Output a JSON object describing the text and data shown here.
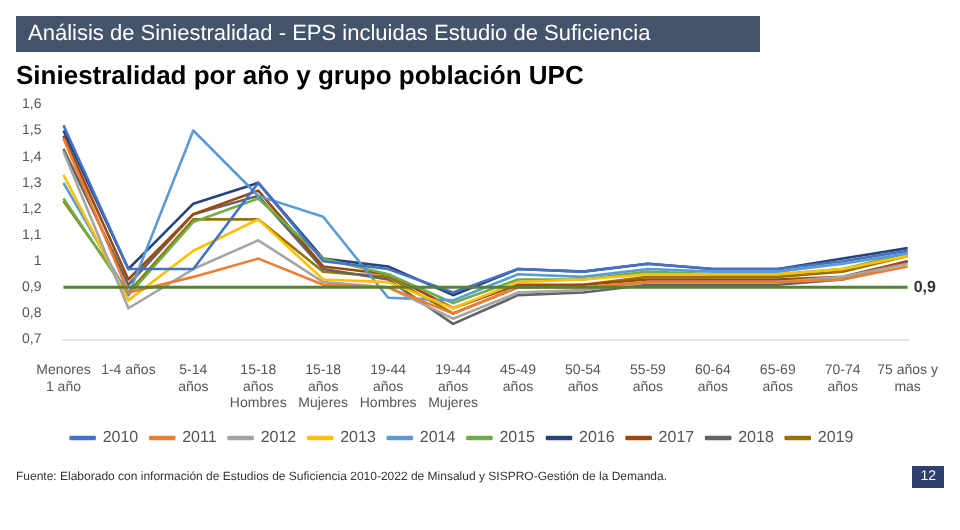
{
  "chart_data": {
    "type": "line",
    "title": "Análisis de Siniestralidad - EPS incluidas Estudio de Suficiencia",
    "subtitle": "Siniestralidad por año y grupo población UPC",
    "categories": [
      "Menores\n1 año",
      "1-4 años",
      "5-14\naños",
      "15-18\naños\nHombres",
      "15-18\naños\nMujeres",
      "19-44\naños\nHombres",
      "19-44\naños\nMujeres",
      "45-49\naños",
      "50-54\naños",
      "55-59\naños",
      "60-64\naños",
      "65-69\naños",
      "70-74\naños",
      "75 años y\nmas"
    ],
    "series": [
      {
        "name": "2010",
        "color": "#4472c4",
        "values": [
          1.52,
          0.97,
          0.97,
          1.3,
          1.0,
          0.97,
          0.88,
          0.97,
          0.96,
          0.99,
          0.97,
          0.97,
          1.0,
          1.04
        ]
      },
      {
        "name": "2011",
        "color": "#ed7d31",
        "values": [
          1.47,
          0.88,
          0.94,
          1.01,
          0.91,
          0.9,
          0.8,
          0.9,
          0.9,
          0.92,
          0.92,
          0.92,
          0.93,
          0.98
        ]
      },
      {
        "name": "2012",
        "color": "#a5a5a5",
        "values": [
          1.42,
          0.82,
          0.97,
          1.08,
          0.92,
          0.9,
          0.78,
          0.88,
          0.89,
          0.92,
          null,
          0.92,
          0.94,
          0.99
        ]
      },
      {
        "name": "2013",
        "color": "#ffc000",
        "values": [
          1.33,
          0.85,
          1.04,
          1.16,
          0.93,
          0.92,
          0.82,
          0.92,
          0.93,
          0.95,
          0.95,
          0.95,
          0.97,
          1.02
        ]
      },
      {
        "name": "2014",
        "color": "#5b9bd5",
        "values": [
          1.3,
          0.87,
          1.5,
          1.25,
          1.17,
          0.86,
          0.85,
          0.95,
          0.94,
          0.97,
          0.96,
          0.96,
          0.99,
          1.03
        ]
      },
      {
        "name": "2015",
        "color": "#70ad47",
        "values": [
          1.24,
          0.87,
          1.15,
          1.24,
          1.01,
          0.95,
          0.84,
          0.93,
          0.93,
          0.96,
          0.95,
          0.95,
          0.97,
          1.03
        ]
      },
      {
        "name": "2016",
        "color": "#264478",
        "values": [
          1.5,
          0.97,
          1.22,
          1.3,
          1.01,
          0.98,
          0.87,
          0.97,
          0.96,
          0.99,
          0.97,
          0.97,
          1.01,
          1.05
        ]
      },
      {
        "name": "2017",
        "color": "#9e480e",
        "values": [
          1.48,
          0.93,
          1.18,
          1.27,
          0.98,
          0.95,
          0.82,
          0.91,
          0.91,
          0.93,
          0.93,
          0.93,
          0.94,
          1.0
        ]
      },
      {
        "name": "2018",
        "color": "#636363",
        "values": [
          1.43,
          0.91,
          1.18,
          1.25,
          0.97,
          0.93,
          0.76,
          0.87,
          0.88,
          0.91,
          0.91,
          0.91,
          0.93,
          1.0
        ]
      },
      {
        "name": "2019",
        "color": "#997300",
        "values": [
          1.23,
          0.88,
          1.16,
          1.16,
          0.96,
          0.94,
          0.8,
          0.9,
          0.91,
          0.94,
          0.94,
          0.94,
          0.96,
          1.02
        ]
      }
    ],
    "ylim": [
      0.7,
      1.6
    ],
    "yticks": [
      {
        "value": 0.7,
        "label": "0,7"
      },
      {
        "value": 0.8,
        "label": "0,8"
      },
      {
        "value": 0.9,
        "label": "0,9"
      },
      1,
      {
        "value": 1.1,
        "label": "1,1"
      },
      {
        "value": 1.2,
        "label": "1,2"
      },
      {
        "value": 1.3,
        "label": "1,3"
      },
      {
        "value": 1.4,
        "label": "1,4"
      },
      {
        "value": 1.5,
        "label": "1,5"
      },
      {
        "value": 1.6,
        "label": "1,6"
      }
    ],
    "ref_lines": [
      {
        "axis": "y",
        "value": 0.9,
        "label": "0,9",
        "color": "#548235"
      }
    ],
    "legend": "bottom",
    "annotations": [
      "Fuente: Elaborado con información de Estudios de Suficiencia 2010-2022 de Minsalud y SISPRO-Gestión de la Demanda.",
      "12"
    ]
  }
}
